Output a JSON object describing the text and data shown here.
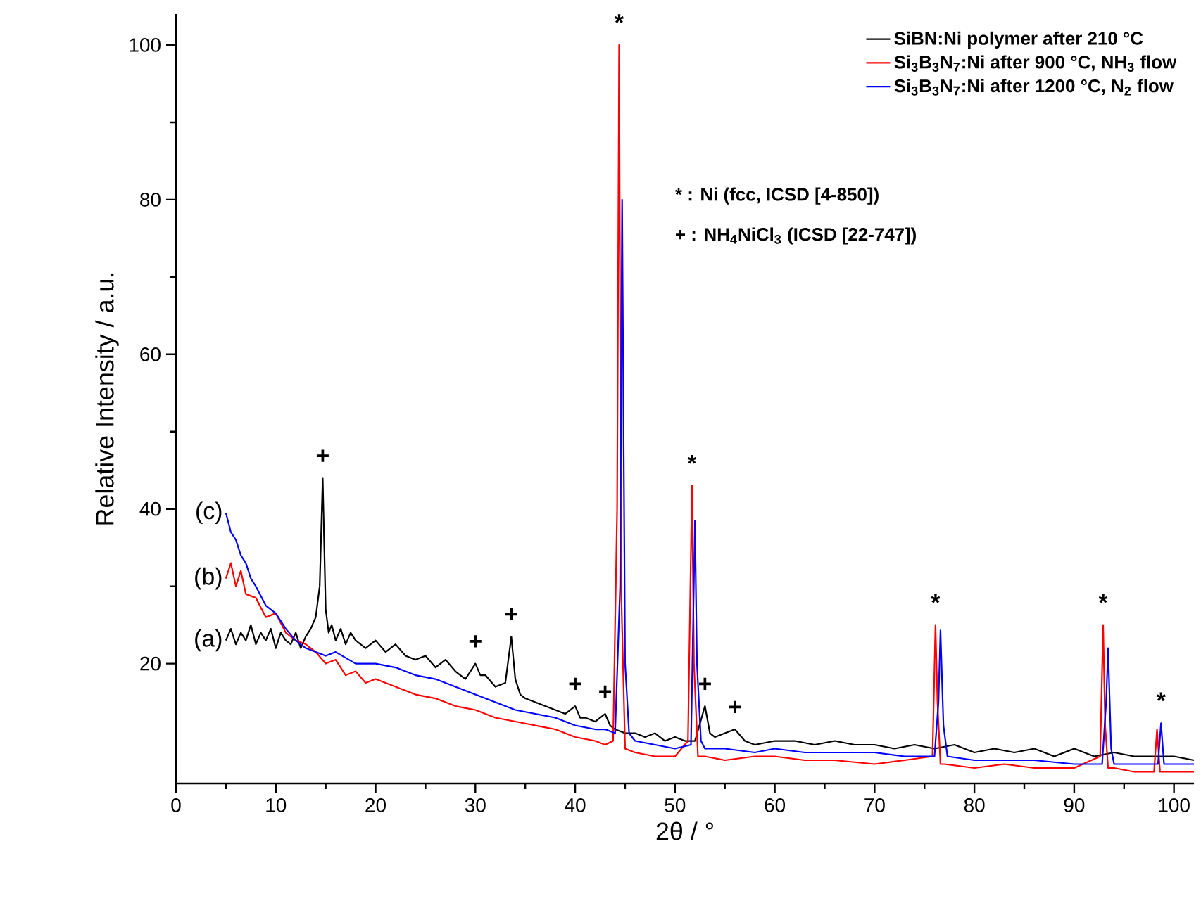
{
  "chart_data": {
    "type": "line",
    "xlabel": "2θ / °",
    "ylabel": "Relative Intensity / a.u.",
    "xlim": [
      0,
      102
    ],
    "ylim": [
      4.5,
      104
    ],
    "xticks": [
      0,
      10,
      20,
      30,
      40,
      50,
      60,
      70,
      80,
      90,
      100
    ],
    "yticks": [
      20,
      40,
      60,
      80,
      100
    ],
    "legend": "top right",
    "grid": false,
    "marker": "none",
    "line_style": "solid",
    "series": [
      {
        "name": "SiBN:Ni polymer after 210 °C",
        "color": "#000000",
        "x": [
          5,
          5.5,
          6,
          6.5,
          7,
          7.5,
          8,
          8.5,
          9,
          9.5,
          10,
          10.5,
          11,
          11.5,
          12,
          12.5,
          13,
          13.5,
          14,
          14.4,
          14.7,
          15,
          15.3,
          15.6,
          16,
          16.5,
          17,
          17.5,
          18,
          19,
          20,
          21,
          22,
          23,
          24,
          25,
          26,
          27,
          28,
          29,
          30,
          30.5,
          31,
          32,
          33,
          33.6,
          34,
          34.5,
          35,
          36,
          37,
          38,
          39,
          40,
          40.5,
          41,
          42,
          43,
          43.5,
          44,
          45,
          46,
          47,
          48,
          49,
          50,
          51,
          52,
          53,
          53.5,
          54,
          55,
          56,
          57,
          58,
          60,
          62,
          64,
          66,
          68,
          70,
          72,
          74,
          76,
          78,
          80,
          82,
          84,
          86,
          88,
          90,
          92,
          94,
          96,
          98,
          100,
          102
        ],
        "values": [
          23,
          24.5,
          22.5,
          24,
          23,
          25,
          22.5,
          24,
          23,
          24.5,
          22,
          24,
          23,
          22.5,
          24,
          22,
          23.5,
          24.5,
          26,
          30,
          44,
          27,
          24,
          25,
          23,
          24.5,
          22.5,
          24,
          23,
          22,
          23,
          21.5,
          22.5,
          21,
          20.5,
          21,
          19.5,
          20.5,
          19,
          18,
          20,
          18.5,
          18.5,
          17,
          17.5,
          23.5,
          18,
          16,
          15.5,
          15,
          14.5,
          14,
          13.5,
          14.5,
          13,
          13,
          12.5,
          13.5,
          12,
          11.5,
          11,
          11,
          10.5,
          11,
          10,
          10.5,
          10,
          10,
          14.5,
          11,
          10.5,
          11,
          11.5,
          10,
          9.5,
          10,
          10,
          9.5,
          10,
          9.5,
          9.5,
          9,
          9.5,
          9,
          9.5,
          8.5,
          9,
          8.5,
          9,
          8,
          9,
          8,
          8.5,
          8,
          8,
          8,
          7.5
        ]
      },
      {
        "name": "Si$_{3}$B$_{3}$N$_{7}$:Ni after 900 °C, NH$_{3}$ flow",
        "color": "#ff0000",
        "x": [
          5,
          5.5,
          6,
          6.5,
          7,
          8,
          9,
          10,
          11,
          12,
          13,
          14,
          15,
          16,
          17,
          18,
          19,
          20,
          22,
          24,
          26,
          28,
          30,
          32,
          34,
          36,
          38,
          40,
          42,
          43,
          43.8,
          44.2,
          44.4,
          44.6,
          45,
          46,
          48,
          50,
          51.3,
          51.7,
          51.9,
          52.3,
          53,
          55,
          58,
          60,
          63,
          66,
          70,
          73,
          75.8,
          76.1,
          76.3,
          76.6,
          77,
          80,
          83,
          86,
          90,
          92.6,
          92.9,
          93.1,
          93.4,
          94,
          96,
          98,
          98.3,
          98.6,
          99,
          100,
          102
        ],
        "values": [
          31,
          33,
          30,
          32,
          29,
          28.5,
          26,
          26.5,
          24,
          23,
          22.5,
          21.5,
          20,
          20.5,
          18.5,
          19,
          17.5,
          18,
          17,
          16,
          15.5,
          14.5,
          14,
          13,
          12.5,
          12,
          11.5,
          10.5,
          10,
          9.5,
          10,
          40,
          100,
          30,
          9,
          8.5,
          8,
          8,
          10,
          43,
          20,
          8,
          8,
          7.5,
          8,
          8,
          7.5,
          7.5,
          7,
          7.5,
          8,
          25,
          15,
          7,
          7,
          6.5,
          7,
          6.5,
          6.5,
          8,
          25,
          12,
          6.5,
          6.5,
          6,
          6,
          11.5,
          6,
          6,
          6,
          6
        ]
      },
      {
        "name": "Si$_{3}$B$_{3}$N$_{7}$:Ni after 1200 °C, N$_{2}$ flow",
        "color": "#0000ff",
        "x": [
          5,
          5.5,
          6,
          6.5,
          7,
          7.5,
          8,
          9,
          10,
          11,
          12,
          13,
          14,
          15,
          16,
          18,
          20,
          22,
          24,
          26,
          28,
          30,
          32,
          34,
          36,
          38,
          40,
          42,
          43,
          44,
          44.5,
          44.7,
          45,
          45.4,
          46,
          48,
          50,
          51.6,
          52,
          52.2,
          52.6,
          53,
          55,
          58,
          60,
          63,
          66,
          70,
          73,
          76,
          76.4,
          76.6,
          76.9,
          77.3,
          80,
          83,
          86,
          90,
          92.8,
          93.2,
          93.4,
          93.7,
          94,
          96,
          98,
          98.4,
          98.7,
          99,
          100,
          102
        ],
        "values": [
          39.5,
          37,
          36,
          34,
          33,
          31,
          30,
          27.5,
          26.5,
          24.5,
          23,
          22,
          21.5,
          21,
          21.5,
          20,
          20,
          19.5,
          18.5,
          18,
          17,
          16,
          15,
          14,
          13.5,
          13,
          12,
          11.5,
          11.5,
          11,
          30,
          80,
          20,
          11,
          10,
          9.5,
          9,
          9.5,
          38.5,
          20,
          10,
          9,
          9,
          8.5,
          9,
          8.5,
          8.5,
          8.5,
          8,
          8,
          15,
          24.3,
          12,
          8,
          7.5,
          7.5,
          7.5,
          7,
          7,
          15,
          22,
          9,
          7,
          7,
          7,
          7,
          12.3,
          7,
          7,
          7
        ]
      }
    ],
    "annotations": [
      "* : Ni (fcc, ICSD [4-850])",
      "+ : NH$_{4}$NiCl$_{3}$ (ICSD [22-747])",
      {
        "text": "(a)",
        "x": 5,
        "y": 23
      },
      {
        "text": "(b)",
        "x": 5,
        "y": 31
      },
      {
        "text": "(c)",
        "x": 5,
        "y": 39.5
      },
      {
        "text": "+",
        "x": 14.7,
        "y": 44
      },
      {
        "text": "+",
        "x": 30,
        "y": 20
      },
      {
        "text": "+",
        "x": 33.6,
        "y": 23.5
      },
      {
        "text": "+",
        "x": 40,
        "y": 14.5
      },
      {
        "text": "+",
        "x": 43,
        "y": 13.5
      },
      {
        "text": "+",
        "x": 53,
        "y": 14.5
      },
      {
        "text": "+",
        "x": 56,
        "y": 11.5
      },
      {
        "text": "*",
        "x": 44.4,
        "y": 100
      },
      {
        "text": "*",
        "x": 51.7,
        "y": 43
      },
      {
        "text": "*",
        "x": 76.1,
        "y": 25
      },
      {
        "text": "*",
        "x": 92.9,
        "y": 25
      },
      {
        "text": "*",
        "x": 98.7,
        "y": 12.3
      }
    ]
  }
}
